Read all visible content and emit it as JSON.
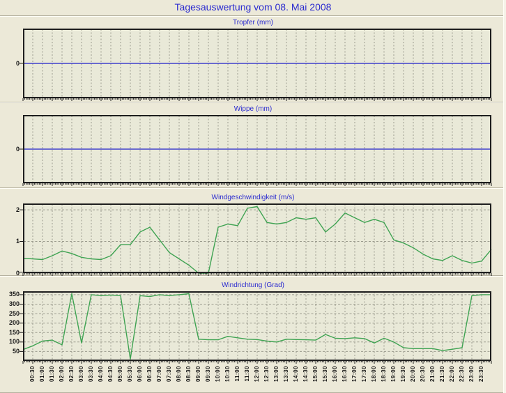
{
  "page": {
    "title": "Tagesauswertung vom 08. Mai 2008"
  },
  "colors": {
    "background": "#ece9d8",
    "plot_background": "#e9e9d8",
    "grid": "#9c9c8e",
    "axis_border": "#1e1e1e",
    "title_blue": "#2b2bcf",
    "zero_line_blue": "#4040cc",
    "series_green": "#3fa352",
    "label_color": "#161616"
  },
  "x_axis": {
    "labels": [
      "00:30",
      "01:00",
      "01:30",
      "02:00",
      "02:30",
      "03:00",
      "03:30",
      "04:00",
      "04:30",
      "05:00",
      "05:30",
      "06:00",
      "06:30",
      "07:00",
      "07:30",
      "08:00",
      "08:30",
      "09:00",
      "09:30",
      "10:00",
      "10:30",
      "11:00",
      "11:30",
      "12:00",
      "12:30",
      "13:00",
      "13:30",
      "14:00",
      "14:30",
      "15:00",
      "15:30",
      "16:00",
      "16:30",
      "17:00",
      "17:30",
      "18:00",
      "18:30",
      "19:00",
      "19:30",
      "20:00",
      "20:30",
      "21:00",
      "21:30",
      "22:00",
      "22:30",
      "23:00",
      "23:30"
    ]
  },
  "chart_data": [
    {
      "type": "line",
      "title": "Tropfer (mm)",
      "x_start": "00:00",
      "x_end": "24:00",
      "x_step_minutes": 30,
      "ylim": [
        -1,
        1
      ],
      "yticks": [
        0
      ],
      "grid": true,
      "series": [
        {
          "name": "Tropfer",
          "color": "#4040cc",
          "values": [
            0,
            0,
            0,
            0,
            0,
            0,
            0,
            0,
            0,
            0,
            0,
            0,
            0,
            0,
            0,
            0,
            0,
            0,
            0,
            0,
            0,
            0,
            0,
            0,
            0,
            0,
            0,
            0,
            0,
            0,
            0,
            0,
            0,
            0,
            0,
            0,
            0,
            0,
            0,
            0,
            0,
            0,
            0,
            0,
            0,
            0,
            0,
            0,
            0
          ]
        }
      ]
    },
    {
      "type": "line",
      "title": "Wippe (mm)",
      "x_start": "00:00",
      "x_end": "24:00",
      "x_step_minutes": 30,
      "ylim": [
        -1,
        1
      ],
      "yticks": [
        0
      ],
      "grid": true,
      "series": [
        {
          "name": "Wippe",
          "color": "#4040cc",
          "values": [
            0,
            0,
            0,
            0,
            0,
            0,
            0,
            0,
            0,
            0,
            0,
            0,
            0,
            0,
            0,
            0,
            0,
            0,
            0,
            0,
            0,
            0,
            0,
            0,
            0,
            0,
            0,
            0,
            0,
            0,
            0,
            0,
            0,
            0,
            0,
            0,
            0,
            0,
            0,
            0,
            0,
            0,
            0,
            0,
            0,
            0,
            0,
            0,
            0
          ]
        }
      ]
    },
    {
      "type": "line",
      "title": "Windgeschwindigkeit (m/s)",
      "x_start": "00:00",
      "x_end": "24:00",
      "x_step_minutes": 30,
      "ylim": [
        0,
        2.2
      ],
      "yticks": [
        0,
        1,
        2
      ],
      "grid": true,
      "series": [
        {
          "name": "Windgeschwindigkeit",
          "color": "#3fa352",
          "values": [
            0.47,
            0.45,
            0.43,
            0.55,
            0.7,
            0.62,
            0.5,
            0.45,
            0.43,
            0.55,
            0.9,
            0.9,
            1.3,
            1.45,
            1.05,
            0.65,
            0.45,
            0.25,
            0.0,
            0.0,
            1.45,
            1.55,
            1.5,
            2.05,
            2.1,
            1.6,
            1.55,
            1.6,
            1.75,
            1.7,
            1.75,
            1.3,
            1.55,
            1.9,
            1.75,
            1.6,
            1.7,
            1.6,
            1.05,
            0.95,
            0.8,
            0.6,
            0.45,
            0.4,
            0.55,
            0.4,
            0.32,
            0.38,
            0.75
          ]
        }
      ]
    },
    {
      "type": "line",
      "title": "Windrichtung (Grad)",
      "x_start": "00:00",
      "x_end": "24:00",
      "x_step_minutes": 30,
      "ylim": [
        0,
        368
      ],
      "yticks": [
        50,
        100,
        150,
        200,
        250,
        300,
        350
      ],
      "grid": true,
      "series": [
        {
          "name": "Windrichtung",
          "color": "#3fa352",
          "values": [
            60,
            80,
            105,
            110,
            85,
            355,
            95,
            350,
            345,
            348,
            345,
            10,
            345,
            340,
            350,
            345,
            350,
            355,
            115,
            112,
            112,
            130,
            122,
            115,
            113,
            105,
            100,
            115,
            113,
            112,
            110,
            140,
            120,
            118,
            122,
            118,
            95,
            120,
            100,
            70,
            65,
            65,
            65,
            55,
            62,
            70,
            345,
            350,
            350
          ]
        }
      ]
    }
  ]
}
